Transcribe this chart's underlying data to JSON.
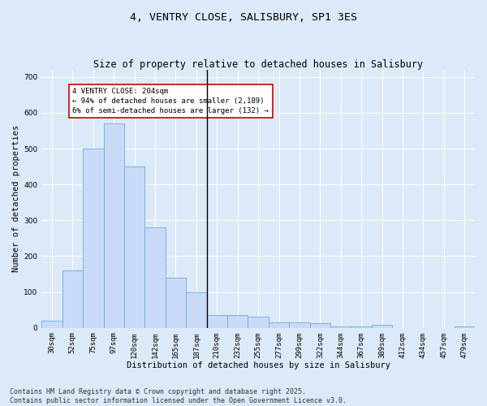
{
  "title": "4, VENTRY CLOSE, SALISBURY, SP1 3ES",
  "subtitle": "Size of property relative to detached houses in Salisbury",
  "xlabel": "Distribution of detached houses by size in Salisbury",
  "ylabel": "Number of detached properties",
  "categories": [
    "30sqm",
    "52sqm",
    "75sqm",
    "97sqm",
    "120sqm",
    "142sqm",
    "165sqm",
    "187sqm",
    "210sqm",
    "232sqm",
    "255sqm",
    "277sqm",
    "299sqm",
    "322sqm",
    "344sqm",
    "367sqm",
    "389sqm",
    "412sqm",
    "434sqm",
    "457sqm",
    "479sqm"
  ],
  "values": [
    20,
    160,
    500,
    570,
    450,
    280,
    140,
    100,
    35,
    35,
    30,
    15,
    15,
    12,
    5,
    5,
    8,
    0,
    0,
    0,
    5
  ],
  "bar_color": "#c9daf8",
  "bar_edge_color": "#6baed6",
  "vline_x_index": 8,
  "property_size": "204sqm",
  "pct_smaller": "94%",
  "n_smaller": "2,189",
  "pct_larger": "6%",
  "n_larger": "132",
  "annotation_box_facecolor": "#ffffff",
  "annotation_box_edgecolor": "#cc0000",
  "ylim": [
    0,
    720
  ],
  "yticks": [
    0,
    100,
    200,
    300,
    400,
    500,
    600,
    700
  ],
  "bg_color": "#dce9f8",
  "grid_color": "#ffffff",
  "footnote": "Contains HM Land Registry data © Crown copyright and database right 2025.\nContains public sector information licensed under the Open Government Licence v3.0.",
  "title_fontsize": 9.5,
  "subtitle_fontsize": 8.5,
  "xlabel_fontsize": 7.5,
  "ylabel_fontsize": 7.5,
  "tick_fontsize": 6.5,
  "annotation_fontsize": 6.5,
  "footnote_fontsize": 6.0
}
